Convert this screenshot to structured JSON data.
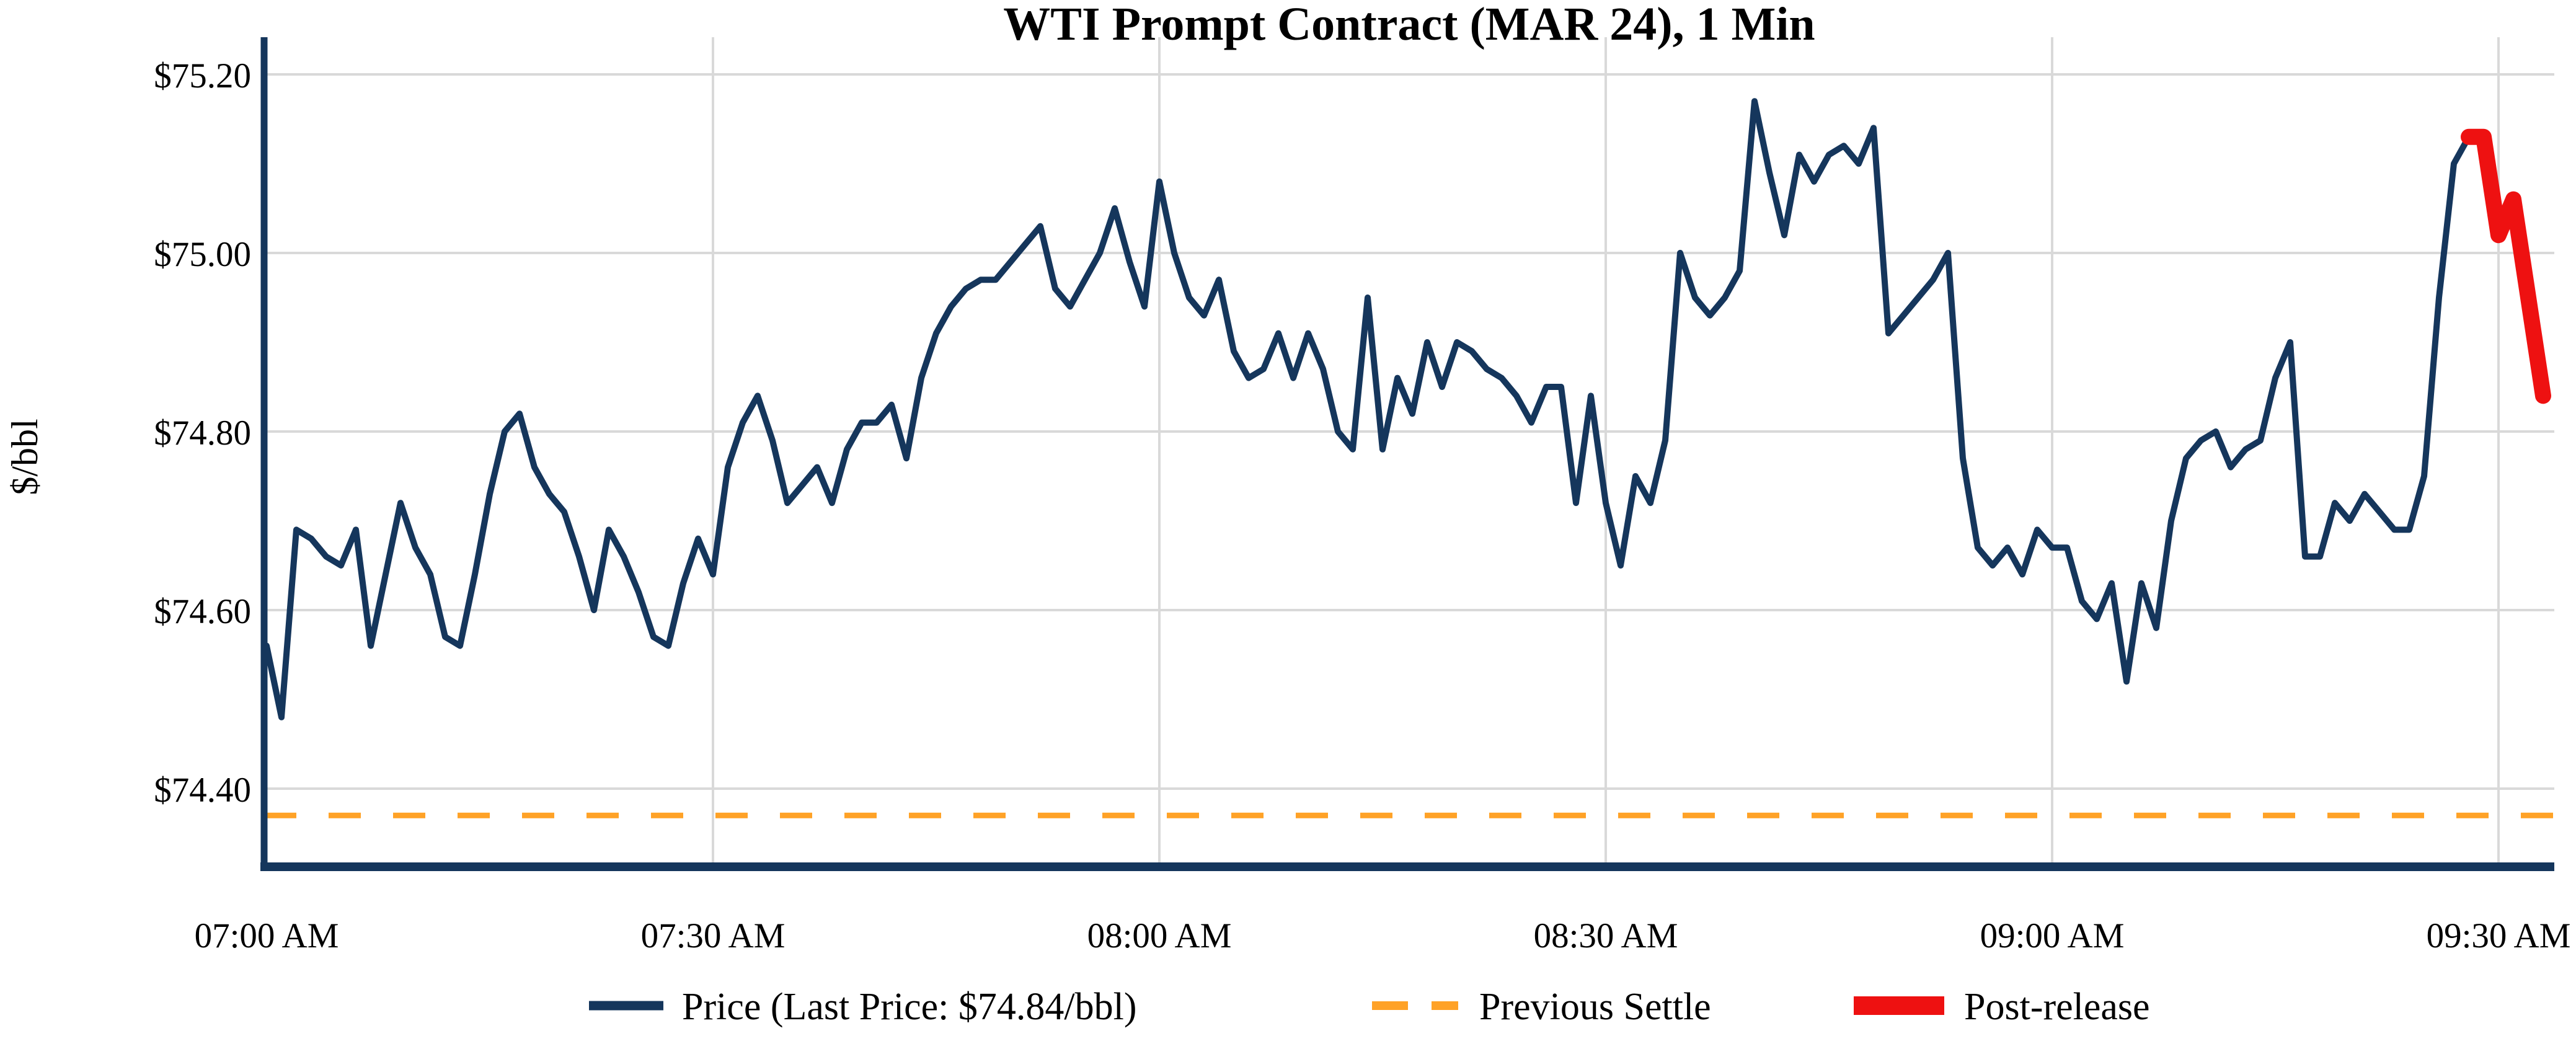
{
  "chart_data": {
    "type": "line",
    "title": "WTI Prompt Contract (MAR 24), 1 Min",
    "xlabel": "",
    "ylabel": "$/bbl",
    "grid": true,
    "legend_position": "bottom-center",
    "ylim": [
      74.31,
      75.24
    ],
    "xlim": [
      "07:00",
      "09:34"
    ],
    "y_ticks": [
      75.2,
      75.0,
      74.8,
      74.6,
      74.4
    ],
    "y_tick_labels": [
      "$75.20",
      "$75.00",
      "$74.80",
      "$74.60",
      "$74.40"
    ],
    "x_ticks": [
      "07:00",
      "07:30",
      "08:00",
      "08:30",
      "09:00",
      "09:30"
    ],
    "x_tick_labels": [
      "07:00 AM",
      "07:30 AM",
      "08:00 AM",
      "08:30 AM",
      "09:00 AM",
      "09:30 AM"
    ],
    "previous_settle": 74.37,
    "last_price": 74.84,
    "colors": {
      "price": "#15365C",
      "previous_settle": "#FFA227",
      "post_release": "#EE1111",
      "grid": "#D9D9D9",
      "axis": "#15365C"
    },
    "series": [
      {
        "name": "Price (Last Price: $74.84/bbl)",
        "color": "#15365C",
        "style": "solid",
        "points": [
          [
            "07:00",
            74.56
          ],
          [
            "07:01",
            74.48
          ],
          [
            "07:02",
            74.69
          ],
          [
            "07:03",
            74.68
          ],
          [
            "07:04",
            74.66
          ],
          [
            "07:05",
            74.65
          ],
          [
            "07:06",
            74.69
          ],
          [
            "07:07",
            74.56
          ],
          [
            "07:08",
            74.64
          ],
          [
            "07:09",
            74.72
          ],
          [
            "07:10",
            74.67
          ],
          [
            "07:11",
            74.64
          ],
          [
            "07:12",
            74.57
          ],
          [
            "07:13",
            74.56
          ],
          [
            "07:14",
            74.64
          ],
          [
            "07:15",
            74.73
          ],
          [
            "07:16",
            74.8
          ],
          [
            "07:17",
            74.82
          ],
          [
            "07:18",
            74.76
          ],
          [
            "07:19",
            74.73
          ],
          [
            "07:20",
            74.71
          ],
          [
            "07:21",
            74.66
          ],
          [
            "07:22",
            74.6
          ],
          [
            "07:23",
            74.69
          ],
          [
            "07:24",
            74.66
          ],
          [
            "07:25",
            74.62
          ],
          [
            "07:26",
            74.57
          ],
          [
            "07:27",
            74.56
          ],
          [
            "07:28",
            74.63
          ],
          [
            "07:29",
            74.68
          ],
          [
            "07:30",
            74.64
          ],
          [
            "07:31",
            74.76
          ],
          [
            "07:32",
            74.81
          ],
          [
            "07:33",
            74.84
          ],
          [
            "07:34",
            74.79
          ],
          [
            "07:35",
            74.72
          ],
          [
            "07:36",
            74.74
          ],
          [
            "07:37",
            74.76
          ],
          [
            "07:38",
            74.72
          ],
          [
            "07:39",
            74.78
          ],
          [
            "07:40",
            74.81
          ],
          [
            "07:41",
            74.81
          ],
          [
            "07:42",
            74.83
          ],
          [
            "07:43",
            74.77
          ],
          [
            "07:44",
            74.86
          ],
          [
            "07:45",
            74.91
          ],
          [
            "07:46",
            74.94
          ],
          [
            "07:47",
            74.96
          ],
          [
            "07:48",
            74.97
          ],
          [
            "07:49",
            74.97
          ],
          [
            "07:50",
            74.99
          ],
          [
            "07:51",
            75.01
          ],
          [
            "07:52",
            75.03
          ],
          [
            "07:53",
            74.96
          ],
          [
            "07:54",
            74.94
          ],
          [
            "07:55",
            74.97
          ],
          [
            "07:56",
            75.0
          ],
          [
            "07:57",
            75.05
          ],
          [
            "07:58",
            74.99
          ],
          [
            "07:59",
            74.94
          ],
          [
            "08:00",
            75.08
          ],
          [
            "08:01",
            75.0
          ],
          [
            "08:02",
            74.95
          ],
          [
            "08:03",
            74.93
          ],
          [
            "08:04",
            74.97
          ],
          [
            "08:05",
            74.89
          ],
          [
            "08:06",
            74.86
          ],
          [
            "08:07",
            74.87
          ],
          [
            "08:08",
            74.91
          ],
          [
            "08:09",
            74.86
          ],
          [
            "08:10",
            74.91
          ],
          [
            "08:11",
            74.87
          ],
          [
            "08:12",
            74.8
          ],
          [
            "08:13",
            74.78
          ],
          [
            "08:14",
            74.95
          ],
          [
            "08:15",
            74.78
          ],
          [
            "08:16",
            74.86
          ],
          [
            "08:17",
            74.82
          ],
          [
            "08:18",
            74.9
          ],
          [
            "08:19",
            74.85
          ],
          [
            "08:20",
            74.9
          ],
          [
            "08:21",
            74.89
          ],
          [
            "08:22",
            74.87
          ],
          [
            "08:23",
            74.86
          ],
          [
            "08:24",
            74.84
          ],
          [
            "08:25",
            74.81
          ],
          [
            "08:26",
            74.85
          ],
          [
            "08:27",
            74.85
          ],
          [
            "08:28",
            74.72
          ],
          [
            "08:29",
            74.84
          ],
          [
            "08:30",
            74.72
          ],
          [
            "08:31",
            74.65
          ],
          [
            "08:32",
            74.75
          ],
          [
            "08:33",
            74.72
          ],
          [
            "08:34",
            74.79
          ],
          [
            "08:35",
            75.0
          ],
          [
            "08:36",
            74.95
          ],
          [
            "08:37",
            74.93
          ],
          [
            "08:38",
            74.95
          ],
          [
            "08:39",
            74.98
          ],
          [
            "08:40",
            75.17
          ],
          [
            "08:41",
            75.09
          ],
          [
            "08:42",
            75.02
          ],
          [
            "08:43",
            75.11
          ],
          [
            "08:44",
            75.08
          ],
          [
            "08:45",
            75.11
          ],
          [
            "08:46",
            75.12
          ],
          [
            "08:47",
            75.1
          ],
          [
            "08:48",
            75.14
          ],
          [
            "08:49",
            74.91
          ],
          [
            "08:50",
            74.93
          ],
          [
            "08:51",
            74.95
          ],
          [
            "08:52",
            74.97
          ],
          [
            "08:53",
            75.0
          ],
          [
            "08:54",
            74.77
          ],
          [
            "08:55",
            74.67
          ],
          [
            "08:56",
            74.65
          ],
          [
            "08:57",
            74.67
          ],
          [
            "08:58",
            74.64
          ],
          [
            "08:59",
            74.69
          ],
          [
            "09:00",
            74.67
          ],
          [
            "09:01",
            74.67
          ],
          [
            "09:02",
            74.61
          ],
          [
            "09:03",
            74.59
          ],
          [
            "09:04",
            74.63
          ],
          [
            "09:05",
            74.52
          ],
          [
            "09:06",
            74.63
          ],
          [
            "09:07",
            74.58
          ],
          [
            "09:08",
            74.7
          ],
          [
            "09:09",
            74.77
          ],
          [
            "09:10",
            74.79
          ],
          [
            "09:11",
            74.8
          ],
          [
            "09:12",
            74.76
          ],
          [
            "09:13",
            74.78
          ],
          [
            "09:14",
            74.79
          ],
          [
            "09:15",
            74.86
          ],
          [
            "09:16",
            74.9
          ],
          [
            "09:17",
            74.66
          ],
          [
            "09:18",
            74.66
          ],
          [
            "09:19",
            74.72
          ],
          [
            "09:20",
            74.7
          ],
          [
            "09:21",
            74.73
          ],
          [
            "09:22",
            74.71
          ],
          [
            "09:23",
            74.69
          ],
          [
            "09:24",
            74.69
          ],
          [
            "09:25",
            74.75
          ],
          [
            "09:26",
            74.95
          ],
          [
            "09:27",
            75.1
          ],
          [
            "09:28",
            75.13
          ]
        ]
      },
      {
        "name": "Previous Settle",
        "color": "#FFA227",
        "style": "dashed",
        "value": 74.37
      },
      {
        "name": "Post-release",
        "color": "#EE1111",
        "style": "solid-thick",
        "points": [
          [
            "09:28",
            75.13
          ],
          [
            "09:29",
            75.13
          ],
          [
            "09:30",
            75.02
          ],
          [
            "09:31",
            75.06
          ],
          [
            "09:32",
            74.95
          ],
          [
            "09:33",
            74.84
          ]
        ]
      }
    ]
  }
}
